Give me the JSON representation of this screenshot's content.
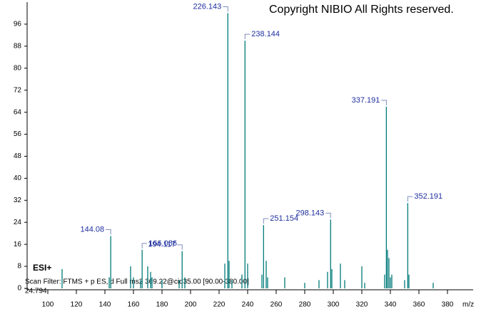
{
  "chart_data": {
    "type": "stem",
    "title": "Copyright NIBIO All Rights reserved.",
    "ion_mode": "ESI+",
    "scan_filter": "Scan Filter: FTMS + p ES, d Full ms2 369.22@cid35.00 [90.00-380.00]",
    "retention_time": "24.794",
    "x_label": "m/z",
    "series": [
      {
        "color": "#007a7a",
        "x": [
          144.08,
          166.086,
          194.117,
          226.143,
          238.144,
          251.154,
          298.143,
          337.191,
          352.191
        ],
        "values": [
          19,
          14,
          13.5,
          100,
          90,
          23,
          25,
          66,
          31
        ]
      },
      {
        "color": "#007a7a",
        "x": [
          110,
          143,
          158,
          160,
          165,
          170,
          172,
          173,
          180,
          192,
          196,
          224,
          227,
          229,
          236,
          240,
          250,
          253,
          254,
          266,
          280,
          290,
          296,
          299,
          305,
          308,
          320,
          322,
          336,
          338,
          339,
          340,
          341,
          350,
          353,
          370
        ],
        "values": [
          7,
          4,
          8,
          4,
          3,
          8,
          6,
          4,
          3,
          3,
          4,
          9,
          10,
          3,
          5,
          9,
          5,
          10,
          4,
          4,
          2,
          3,
          6,
          7,
          9,
          3,
          8,
          2,
          5,
          14,
          11,
          4,
          5,
          3,
          5,
          2
        ]
      }
    ],
    "xlim": [
      85.5,
      398
    ],
    "ylim": [
      0,
      104
    ],
    "xticks": [
      100,
      120,
      140,
      160,
      180,
      200,
      220,
      240,
      260,
      280,
      300,
      320,
      340,
      360,
      380
    ],
    "yticks": [
      0,
      8,
      16,
      24,
      32,
      40,
      48,
      56,
      64,
      72,
      80,
      88,
      96
    ]
  }
}
